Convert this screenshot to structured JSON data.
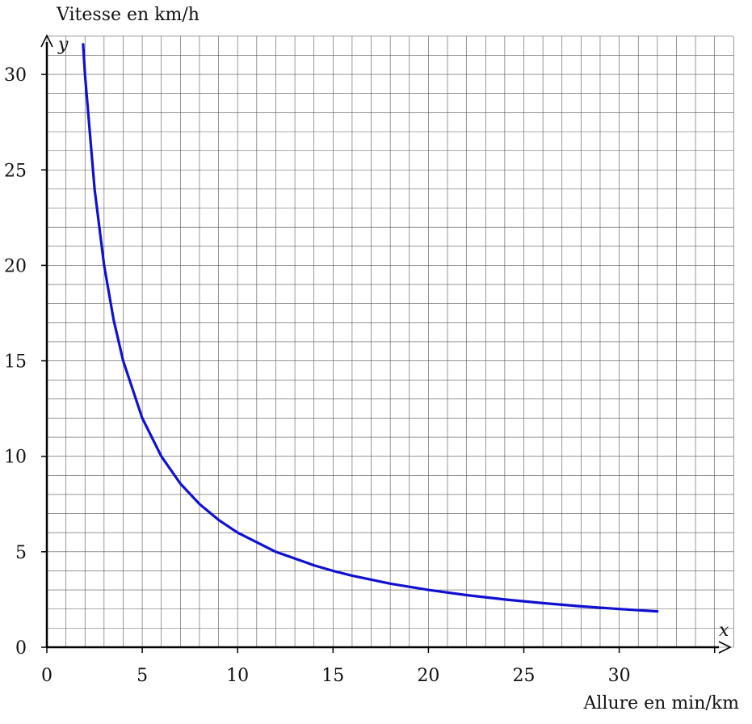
{
  "chart_data": {
    "type": "line",
    "title": "",
    "ylabel": "Vitesse en km/h",
    "xlabel": "Allure en min/km",
    "x_axis_symbol": "x",
    "y_axis_symbol": "y",
    "xlim": [
      0,
      36
    ],
    "ylim": [
      0,
      32
    ],
    "grid": true,
    "grid_minor_step_x": 1,
    "grid_minor_step_y": 1,
    "x_ticks": [
      0,
      5,
      10,
      15,
      20,
      25,
      30
    ],
    "y_ticks": [
      0,
      5,
      10,
      15,
      20,
      25,
      30
    ],
    "series": [
      {
        "color": "#1010d0",
        "x": [
          1.9,
          2,
          2.5,
          3,
          3.5,
          4,
          5,
          6,
          7,
          8,
          9,
          10,
          12,
          14,
          15,
          16,
          18,
          20,
          22,
          24,
          26,
          28,
          30,
          32
        ],
        "y": [
          31.58,
          30,
          24,
          20,
          17.14,
          15,
          12,
          10,
          8.57,
          7.5,
          6.67,
          6,
          5,
          4.29,
          4,
          3.75,
          3.33,
          3,
          2.73,
          2.5,
          2.31,
          2.14,
          2,
          1.88
        ]
      }
    ]
  }
}
